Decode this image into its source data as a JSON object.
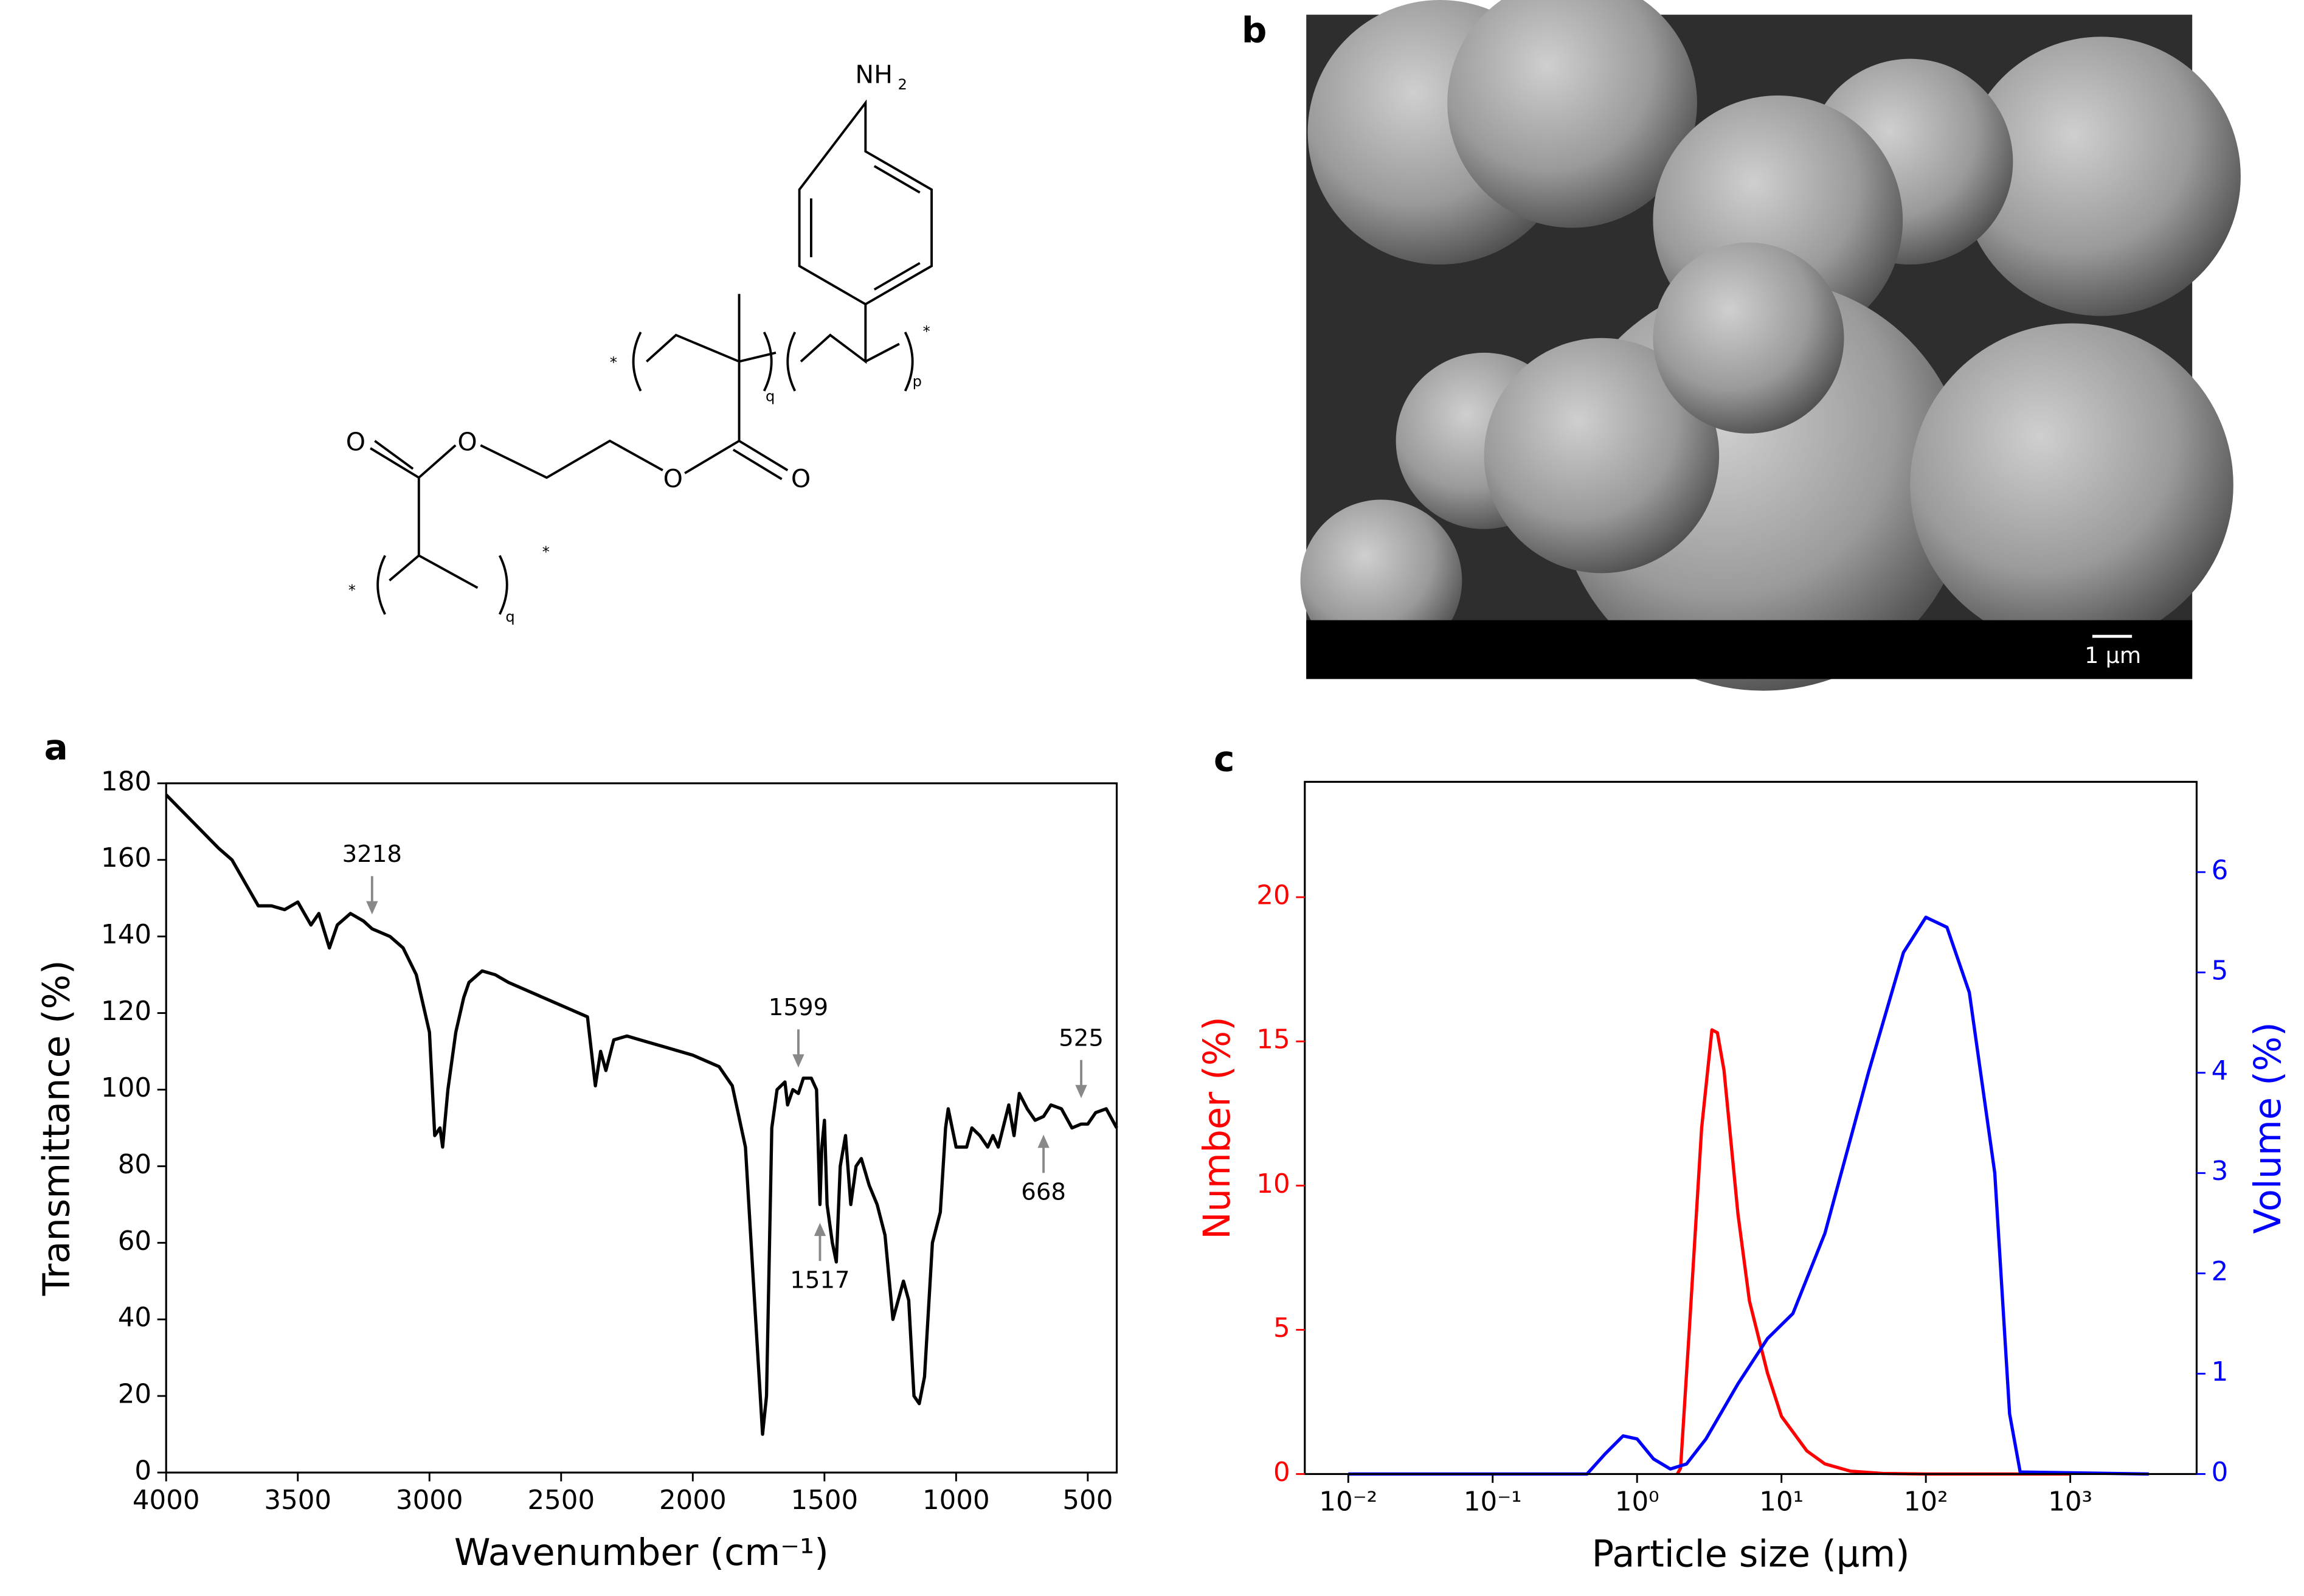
{
  "panel_labels": [
    "a",
    "b",
    "c"
  ],
  "structure": {
    "labels": [
      "NH",
      "2",
      "O",
      "O",
      "O",
      "O",
      "*",
      "*",
      "*",
      "*",
      "q",
      "p",
      "q"
    ]
  },
  "micrograph": {
    "scale_bar": "1 μm"
  },
  "chart_data": [
    {
      "type": "line",
      "xlabel": "Wavenumber (cm⁻¹)",
      "ylabel": "Transmittance (%)",
      "color": "#000000",
      "xlim": [
        4000,
        390
      ],
      "ylim": [
        0,
        180
      ],
      "xticks": [
        4000,
        3500,
        3000,
        2500,
        2000,
        1500,
        1000,
        500
      ],
      "yticks": [
        0,
        20,
        40,
        60,
        80,
        100,
        120,
        140,
        160,
        180
      ],
      "x": [
        4000,
        3900,
        3800,
        3750,
        3700,
        3650,
        3600,
        3550,
        3500,
        3450,
        3420,
        3380,
        3350,
        3300,
        3250,
        3218,
        3150,
        3100,
        3050,
        3000,
        2980,
        2960,
        2950,
        2930,
        2900,
        2870,
        2850,
        2800,
        2750,
        2700,
        2600,
        2500,
        2400,
        2370,
        2350,
        2330,
        2300,
        2250,
        2200,
        2100,
        2000,
        1900,
        1850,
        1800,
        1770,
        1735,
        1720,
        1700,
        1680,
        1650,
        1640,
        1620,
        1599,
        1580,
        1550,
        1530,
        1517,
        1510,
        1500,
        1490,
        1470,
        1455,
        1440,
        1420,
        1400,
        1380,
        1360,
        1330,
        1300,
        1270,
        1240,
        1200,
        1180,
        1160,
        1140,
        1120,
        1090,
        1060,
        1040,
        1030,
        1000,
        960,
        940,
        910,
        880,
        860,
        840,
        800,
        780,
        760,
        730,
        700,
        668,
        640,
        600,
        560,
        525,
        500,
        470,
        430,
        390
      ],
      "values": [
        177,
        170,
        163,
        160,
        154,
        148,
        148,
        147,
        149,
        143,
        146,
        137,
        143,
        146,
        144,
        142,
        140,
        137,
        130,
        115,
        88,
        90,
        85,
        100,
        115,
        124,
        128,
        131,
        130,
        128,
        125,
        122,
        119,
        101,
        110,
        105,
        113,
        114,
        113,
        111,
        109,
        106,
        101,
        85,
        50,
        10,
        20,
        90,
        100,
        102,
        96,
        100,
        99,
        103,
        103,
        100,
        70,
        85,
        92,
        70,
        60,
        55,
        80,
        88,
        70,
        80,
        82,
        75,
        70,
        62,
        40,
        50,
        45,
        20,
        18,
        25,
        60,
        68,
        90,
        95,
        85,
        85,
        90,
        88,
        85,
        88,
        85,
        96,
        88,
        99,
        95,
        92,
        93,
        96,
        95,
        90,
        91,
        91,
        94,
        95,
        90
      ],
      "annotations": [
        {
          "x": 3218,
          "y": 145,
          "side": "above"
        },
        {
          "x": 1599,
          "y": 105,
          "side": "above"
        },
        {
          "x": 1517,
          "y": 66,
          "side": "below"
        },
        {
          "x": 668,
          "y": 89,
          "side": "below"
        },
        {
          "x": 525,
          "y": 97,
          "side": "above"
        }
      ]
    },
    {
      "type": "line",
      "xscale": "log",
      "xlabel": "Particle size (μm)",
      "ylabel": "Number  (%)",
      "y2label": "Volume (%)",
      "xlim": [
        0.005,
        7500
      ],
      "ylim": [
        0,
        24
      ],
      "y2lim": [
        0,
        6.9
      ],
      "xticks": [
        {
          "value": 0.01,
          "label": "10⁻²"
        },
        {
          "value": 0.1,
          "label": "10⁻¹"
        },
        {
          "value": 1,
          "label": "10⁰"
        },
        {
          "value": 10,
          "label": "10¹"
        },
        {
          "value": 100,
          "label": "10²"
        },
        {
          "value": 1000,
          "label": "10³"
        }
      ],
      "yticks": [
        0,
        5,
        10,
        15,
        20
      ],
      "y2ticks": [
        0,
        1,
        2,
        3,
        4,
        5,
        6
      ],
      "series": [
        {
          "color": "#ff0000",
          "x": [
            1.9,
            2.0,
            2.3,
            2.8,
            3.3,
            3.6,
            4,
            5,
            6,
            8,
            10,
            15,
            20,
            30,
            50,
            100,
            1000
          ],
          "values": [
            0,
            0.2,
            5,
            12,
            15.4,
            15.3,
            14,
            9,
            6,
            3.5,
            2,
            0.8,
            0.35,
            0.1,
            0.02,
            0,
            0
          ]
        },
        {
          "color": "#0000ff",
          "axis": "y2",
          "x": [
            0.01,
            0.45,
            0.6,
            0.8,
            1.0,
            1.3,
            1.7,
            2.2,
            3,
            5,
            8,
            12,
            20,
            40,
            70,
            100,
            140,
            200,
            300,
            380,
            450,
            3500
          ],
          "values": [
            0,
            0,
            0.2,
            0.38,
            0.35,
            0.15,
            0.05,
            0.1,
            0.35,
            0.9,
            1.35,
            1.6,
            2.4,
            4,
            5.2,
            5.55,
            5.45,
            4.8,
            3.0,
            0.6,
            0.02,
            0
          ]
        }
      ]
    }
  ]
}
